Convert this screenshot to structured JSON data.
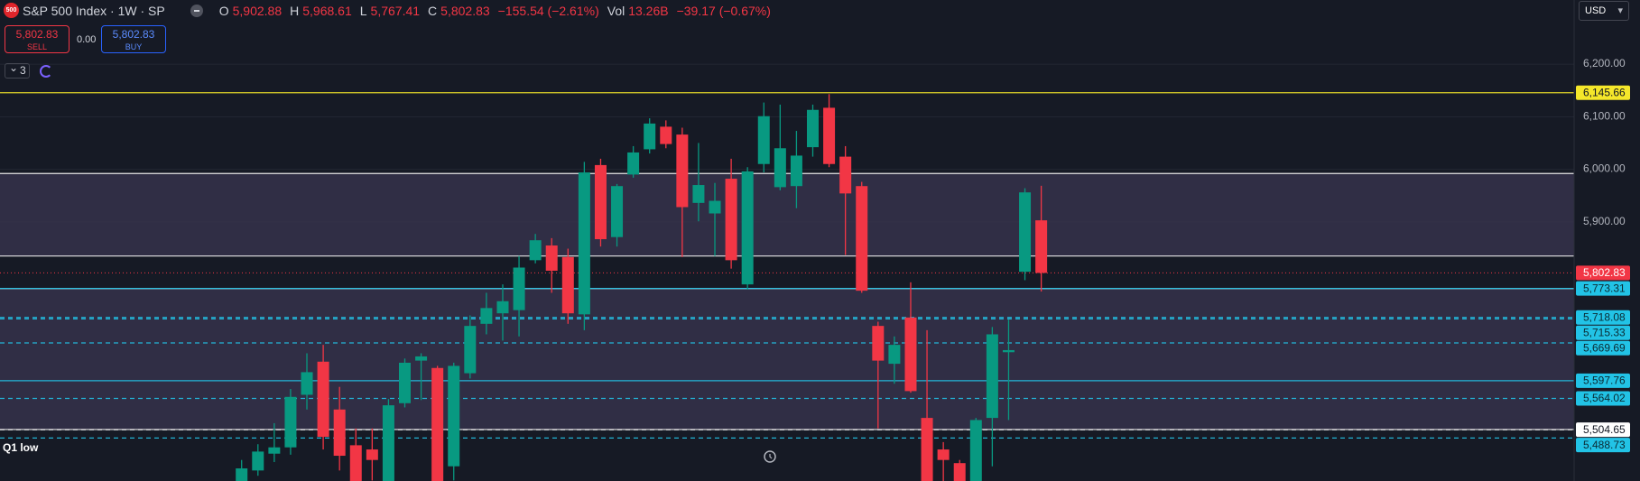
{
  "header": {
    "logo": "500",
    "title": "S&P 500 Index · 1W · SP",
    "ohlc": [
      {
        "key": "O",
        "value": "5,902.88"
      },
      {
        "key": "H",
        "value": "5,968.61"
      },
      {
        "key": "L",
        "value": "5,767.41"
      },
      {
        "key": "C",
        "value": "5,802.83"
      }
    ],
    "change": "−155.54 (−2.61%)",
    "volume": {
      "key": "Vol",
      "value": "13.26B",
      "change": "−39.17 (−0.67%)"
    }
  },
  "trade": {
    "sell_price": "5,802.83",
    "sell": "SELL",
    "spread": "0.00",
    "buy_price": "5,802.83",
    "buy": "BUY"
  },
  "indicators": {
    "count": "3"
  },
  "currency": "USD",
  "annotations": [
    "Q1 low"
  ],
  "chart_data": {
    "type": "candlestick",
    "categories": [
      null,
      null,
      null,
      null,
      null,
      null,
      null,
      null,
      null,
      null,
      null,
      null,
      null,
      null,
      null,
      null,
      null,
      null,
      null,
      null,
      null,
      null,
      null,
      null,
      null,
      null,
      null,
      null,
      null,
      null,
      null,
      null,
      null,
      null,
      null,
      null,
      null,
      null,
      null,
      null,
      null,
      null,
      null,
      null,
      null,
      null,
      null,
      null,
      null,
      null
    ],
    "open": [
      5388,
      5427,
      5459,
      5471,
      5571,
      5634,
      5543,
      5475,
      5467,
      5388,
      5555,
      5636,
      5622,
      5435,
      5612,
      5706,
      5726,
      5732,
      5827,
      5855,
      5833,
      5724,
      6008,
      5871,
      5990,
      6038,
      6081,
      6066,
      5936,
      5916,
      5982,
      5781,
      6010,
      5966,
      5968,
      6042,
      6117,
      6024,
      5968,
      5702,
      5630,
      5718,
      5527,
      5467,
      5441,
      5388,
      5527,
      5652,
      5805,
      5902.88
    ],
    "high": [
      5447,
      5477,
      5517,
      5582,
      5650,
      5666,
      5586,
      5507,
      5507,
      5563,
      5640,
      5650,
      5626,
      5632,
      5722,
      5765,
      5781,
      5835,
      5877,
      5869,
      5849,
      6014,
      6020,
      5972,
      6044,
      6097,
      6093,
      6079,
      6050,
      5974,
      6020,
      6004,
      6127,
      6123,
      6073,
      6123,
      6143,
      6044,
      5976,
      5710,
      5682,
      5785,
      5694,
      5481,
      5447,
      5527,
      5700,
      5714,
      5964,
      5968.61
    ],
    "low": [
      5378,
      5417,
      5443,
      5457,
      5543,
      5467,
      5427,
      5378,
      5408,
      5378,
      5547,
      5561,
      5378,
      5408,
      5602,
      5686,
      5674,
      5682,
      5821,
      5765,
      5706,
      5694,
      5853,
      5853,
      5984,
      6030,
      6040,
      5833,
      5901,
      5835,
      5811,
      5771,
      5994,
      5960,
      5926,
      6024,
      6004,
      5837,
      5765,
      5507,
      5592,
      5575,
      5378,
      5388,
      5378,
      5378,
      5435,
      5523,
      5789,
      5767.41
    ],
    "close": [
      5431,
      5463,
      5471,
      5567,
      5614,
      5491,
      5455,
      5388,
      5447,
      5551,
      5632,
      5644,
      5388,
      5626,
      5702,
      5736,
      5749,
      5813,
      5865,
      5807,
      5726,
      5994,
      5867,
      5968,
      6032,
      6087,
      6048,
      5928,
      5970,
      5940,
      5827,
      5996,
      6101,
      6040,
      6026,
      6113,
      6010,
      5954,
      5769,
      5636,
      5666,
      5578,
      5388,
      5447,
      5388,
      5523,
      5686,
      5656,
      5956,
      5802.83
    ],
    "up_color": "#089981",
    "down_color": "#f23645",
    "ylim": [
      5407,
      6322
    ],
    "yticks": [
      {
        "value": 5900,
        "label": "5,900.00"
      },
      {
        "value": 6000,
        "label": "6,000.00"
      },
      {
        "value": 6100,
        "label": "6,100.00"
      },
      {
        "value": 6200,
        "label": "6,200.00"
      }
    ],
    "grid": true,
    "zones": [
      {
        "high": 5992,
        "low": 5835
      },
      {
        "high": 5773,
        "low": 5505
      }
    ],
    "levels": {
      "values": [
        6145.66,
        5773.31,
        5718.08,
        5715.33,
        5669.69,
        5597.76,
        5564.02,
        5504.65,
        5488.73
      ],
      "value_labels": [
        "6,145.66",
        "5,773.31",
        "5,718.08",
        "5,715.33",
        "5,669.69",
        "5,597.76",
        "5,564.02",
        "5,504.65",
        "5,488.73"
      ],
      "colors": [
        "#f5e72a",
        "#22c3e6",
        "#22c3e6",
        "#22c3e6",
        "#22c3e6",
        "#22c3e6",
        "#22c3e6",
        "#ffffff",
        "#22c3e6"
      ],
      "styles": [
        "solid",
        "solid",
        "dashed",
        "dashed",
        "dashed",
        "solid",
        "dashed",
        "dashed",
        "dashed"
      ]
    },
    "last_price": {
      "value": 5802.83,
      "label": "5,802.83",
      "color": "#f23645"
    }
  }
}
